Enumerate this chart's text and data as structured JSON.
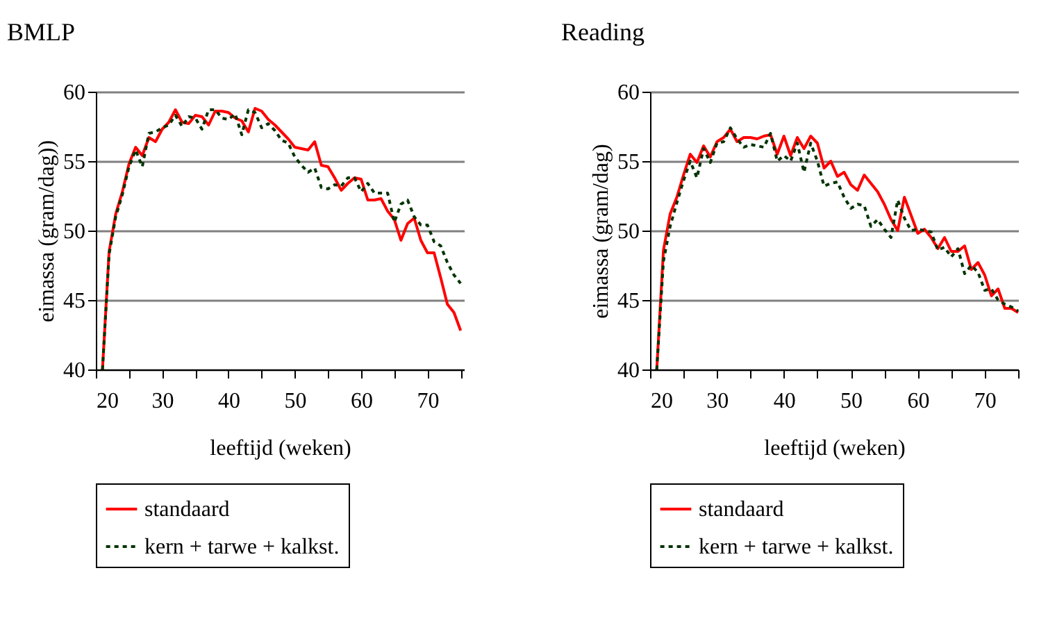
{
  "chart_data": [
    {
      "type": "line",
      "title": "BMLP",
      "xlabel": "leeftijd (weken)",
      "ylabel": "eimassa (gram/dag))",
      "x": [
        21,
        22,
        23,
        24,
        25,
        26,
        27,
        28,
        29,
        30,
        31,
        32,
        33,
        34,
        35,
        36,
        37,
        38,
        39,
        40,
        41,
        42,
        43,
        44,
        45,
        46,
        47,
        48,
        49,
        50,
        51,
        52,
        53,
        54,
        55,
        56,
        57,
        58,
        59,
        60,
        61,
        62,
        63,
        64,
        65,
        66,
        67,
        68,
        69,
        70,
        71,
        72,
        73,
        74,
        75
      ],
      "series": [
        {
          "name": "standaard",
          "color": "#ff0000",
          "line_style": "solid",
          "values": [
            40,
            48.5,
            51.2,
            52.8,
            54.8,
            56.0,
            55.4,
            56.7,
            56.4,
            57.3,
            57.8,
            58.7,
            57.8,
            57.7,
            58.3,
            58.2,
            57.6,
            58.6,
            58.6,
            58.5,
            58.1,
            57.9,
            57.1,
            58.8,
            58.6,
            58.0,
            57.6,
            57.1,
            56.6,
            56.0,
            55.9,
            55.8,
            56.4,
            54.7,
            54.6,
            53.8,
            52.9,
            53.4,
            53.8,
            53.7,
            52.2,
            52.2,
            52.3,
            51.4,
            50.8,
            49.3,
            50.5,
            50.9,
            49.3,
            48.4,
            48.4,
            46.6,
            44.7,
            44.1,
            42.8
          ]
        },
        {
          "name": "kern + tarwe + kalkst.",
          "color": "#003300",
          "line_style": "dashed",
          "values": [
            40,
            48.3,
            51.0,
            52.6,
            54.6,
            55.8,
            54.6,
            57.0,
            57.1,
            57.4,
            57.6,
            58.3,
            57.5,
            58.2,
            58.1,
            57.3,
            58.7,
            58.7,
            58.1,
            58.0,
            58.4,
            56.9,
            58.7,
            58.5,
            57.4,
            57.7,
            57.2,
            56.5,
            56.3,
            55.3,
            54.7,
            54.2,
            54.5,
            53.1,
            53.0,
            53.3,
            53.2,
            53.8,
            53.8,
            52.8,
            53.4,
            52.7,
            52.7,
            52.7,
            50.6,
            51.9,
            52.2,
            51.0,
            50.4,
            50.4,
            49.2,
            48.9,
            47.7,
            46.8,
            46.2
          ]
        }
      ],
      "xlim": [
        20,
        75.5
      ],
      "ylim": [
        40,
        60
      ],
      "xticks": [
        20,
        {
          "value": 25,
          "label": null
        },
        30,
        {
          "value": 35,
          "label": null
        },
        40,
        {
          "value": 45,
          "label": null
        },
        50,
        {
          "value": 55,
          "label": null
        },
        60,
        {
          "value": 65,
          "label": null
        },
        70,
        {
          "value": 75,
          "label": null
        }
      ],
      "yticks": [
        40,
        45,
        50,
        55,
        60
      ],
      "grid": "y",
      "legend": "bottom",
      "marker": "none"
    },
    {
      "type": "line",
      "title": "Reading",
      "xlabel": "leeftijd (weken)",
      "ylabel": "eimassa (gram/dag)",
      "x": [
        21,
        22,
        23,
        24,
        25,
        26,
        27,
        28,
        29,
        30,
        31,
        32,
        33,
        34,
        35,
        36,
        37,
        38,
        39,
        40,
        41,
        42,
        43,
        44,
        45,
        46,
        47,
        48,
        49,
        50,
        51,
        52,
        53,
        54,
        55,
        56,
        57,
        58,
        59,
        60,
        61,
        62,
        63,
        64,
        65,
        66,
        67,
        68,
        69,
        70,
        71,
        72,
        73,
        74,
        75
      ],
      "series": [
        {
          "name": "standaard",
          "color": "#ff0000",
          "line_style": "solid",
          "values": [
            40,
            48.6,
            51.2,
            52.4,
            54.0,
            55.5,
            54.9,
            56.1,
            55.3,
            56.4,
            56.7,
            57.3,
            56.4,
            56.7,
            56.7,
            56.6,
            56.8,
            56.9,
            55.5,
            56.8,
            55.4,
            56.7,
            55.9,
            56.8,
            56.3,
            54.5,
            55.0,
            53.9,
            54.2,
            53.3,
            52.9,
            54.0,
            53.4,
            52.8,
            51.9,
            50.8,
            50.0,
            52.4,
            51.1,
            49.8,
            50.1,
            49.5,
            48.7,
            49.5,
            48.5,
            48.5,
            48.9,
            47.2,
            47.7,
            46.8,
            45.3,
            45.8,
            44.4,
            44.4,
            44.1
          ]
        },
        {
          "name": "kern + tarwe + kalkst.",
          "color": "#003300",
          "line_style": "dashed",
          "values": [
            40,
            47.8,
            50.3,
            52.0,
            53.6,
            55.0,
            53.8,
            55.9,
            54.9,
            56.3,
            56.4,
            57.4,
            56.6,
            56.0,
            56.2,
            56.1,
            56.0,
            57.0,
            55.0,
            55.4,
            55.0,
            56.3,
            54.2,
            56.3,
            55.0,
            53.2,
            53.4,
            53.5,
            52.4,
            51.6,
            51.9,
            51.8,
            50.3,
            50.8,
            50.1,
            49.5,
            52.2,
            50.9,
            50.0,
            50.1,
            50.0,
            49.9,
            48.6,
            48.8,
            48.1,
            48.7,
            46.9,
            47.5,
            47.0,
            45.7,
            45.8,
            45.0,
            44.7,
            44.5,
            44.2
          ]
        }
      ],
      "xlim": [
        20,
        75
      ],
      "ylim": [
        40,
        60
      ],
      "xticks": [
        20,
        {
          "value": 25,
          "label": null
        },
        30,
        {
          "value": 35,
          "label": null
        },
        40,
        {
          "value": 45,
          "label": null
        },
        50,
        {
          "value": 55,
          "label": null
        },
        60,
        {
          "value": 65,
          "label": null
        },
        70,
        {
          "value": 75,
          "label": null
        }
      ],
      "yticks": [
        40,
        45,
        50,
        55,
        60
      ],
      "grid": "y",
      "legend": "bottom",
      "marker": "none"
    }
  ]
}
